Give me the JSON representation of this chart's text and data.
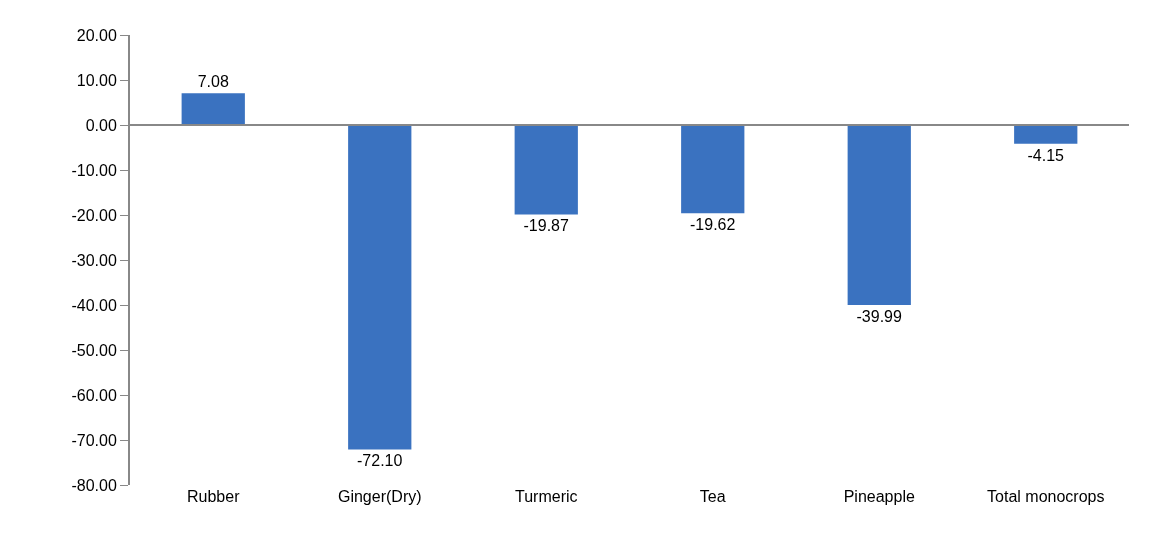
{
  "chart_data": {
    "type": "bar",
    "categories": [
      "Rubber",
      "Ginger(Dry)",
      "Turmeric",
      "Tea",
      "Pineapple",
      "Total monocrops"
    ],
    "values": [
      7.08,
      -72.1,
      -19.87,
      -19.62,
      -39.99,
      -4.15
    ],
    "value_labels": [
      "7.08",
      "-72.10",
      "-19.87",
      "-19.62",
      "-39.99",
      "-4.15"
    ],
    "color": "#3a72c0",
    "ylim": [
      -80,
      20
    ],
    "yticks": [
      {
        "value": 20,
        "label": "20.00"
      },
      {
        "value": 10,
        "label": "10.00"
      },
      {
        "value": 0,
        "label": "0.00"
      },
      {
        "value": -10,
        "label": "-10.00"
      },
      {
        "value": -20,
        "label": "-20.00"
      },
      {
        "value": -30,
        "label": "-30.00"
      },
      {
        "value": -40,
        "label": "-40.00"
      },
      {
        "value": -50,
        "label": "-50.00"
      },
      {
        "value": -60,
        "label": "-60.00"
      },
      {
        "value": -70,
        "label": "-70.00"
      },
      {
        "value": -80,
        "label": "-80.00"
      }
    ],
    "ref_lines": [
      {
        "axis": "y",
        "value": 0,
        "color": "#888888"
      }
    ]
  }
}
